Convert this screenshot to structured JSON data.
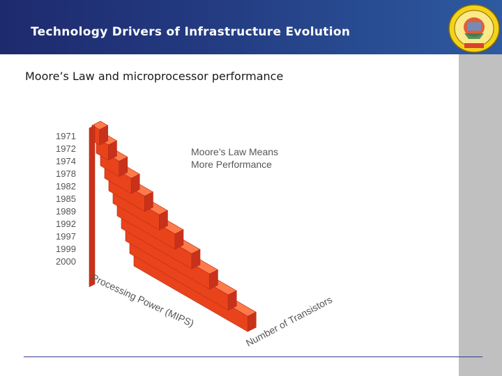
{
  "header": {
    "title": "Technology Drivers of Infrastructure Evolution",
    "logo": {
      "icon": "unikom-university-seal-icon",
      "lettering": "UNIVERSITAS KOMPUTER INDONESIA · UNIKOM"
    }
  },
  "slide": {
    "subtitle": "Moore’s Law and microprocessor performance"
  },
  "figure": {
    "years": [
      "1971",
      "1972",
      "1974",
      "1978",
      "1982",
      "1985",
      "1989",
      "1992",
      "1997",
      "1999",
      "2000"
    ],
    "annotation_line1": "Moore’s Law Means",
    "annotation_line2": "More Performance",
    "axis_processing": "Processing Power (MIPS)",
    "axis_transistors": "Number of Transistors",
    "colors": {
      "front": "#e9431c",
      "top": "#ff7a4a",
      "side": "#c8321a"
    }
  }
}
